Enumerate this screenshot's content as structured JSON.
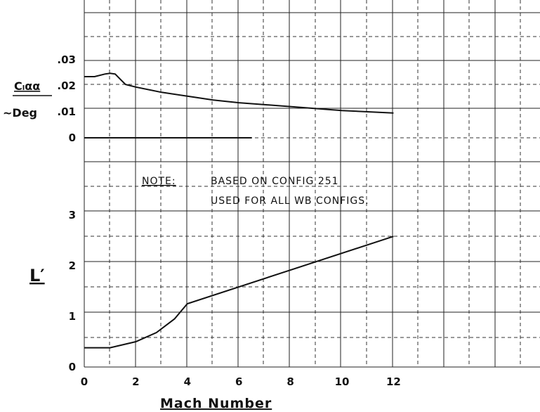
{
  "chart_data": [
    {
      "type": "line",
      "title": "",
      "xlabel": "Mach Number",
      "ylabel_line1": "Cₗαα",
      "ylabel_line2": "~Deg",
      "xlim": [
        0,
        12
      ],
      "ylim": [
        0,
        0.03
      ],
      "yticks": [
        ".03",
        ".02",
        ".01",
        "0"
      ],
      "ytick_values": [
        0.03,
        0.02,
        0.01,
        0
      ],
      "grid": true,
      "series": [
        {
          "x": [
            0,
            0.4,
            0.8,
            1.0,
            1.2,
            1.4,
            1.6,
            2,
            3,
            4,
            5,
            6,
            8,
            10,
            12
          ],
          "values": [
            0.0235,
            0.0235,
            0.0245,
            0.0248,
            0.0245,
            0.0225,
            0.0205,
            0.0195,
            0.0175,
            0.016,
            0.0145,
            0.0135,
            0.012,
            0.0105,
            0.0095
          ]
        }
      ]
    },
    {
      "type": "line",
      "title": "",
      "xlabel": "Mach Number",
      "ylabel": "L′",
      "xlim": [
        0,
        12
      ],
      "ylim": [
        0,
        3
      ],
      "xticks": [
        "0",
        "2",
        "4",
        "6",
        "8",
        "10",
        "12"
      ],
      "xtick_values": [
        0,
        2,
        4,
        6,
        8,
        10,
        12
      ],
      "yticks": [
        "3",
        "2",
        "1",
        "0"
      ],
      "ytick_values": [
        3,
        2,
        1,
        0
      ],
      "grid": true,
      "series": [
        {
          "x": [
            0,
            1,
            2,
            2.8,
            3.5,
            4,
            12
          ],
          "values": [
            0.38,
            0.38,
            0.5,
            0.68,
            0.95,
            1.25,
            2.58
          ]
        }
      ]
    }
  ],
  "note": {
    "label": "NOTE:",
    "line1": "BASED ON CONFIG 251",
    "line2": "USED FOR ALL WB CONFIGS."
  }
}
